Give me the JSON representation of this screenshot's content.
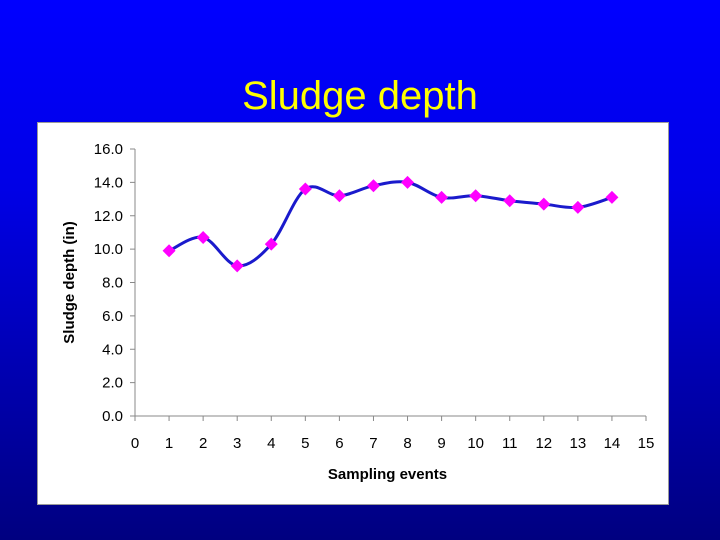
{
  "slide": {
    "title": "Sludge depth"
  },
  "colors": {
    "background": "#0000ff",
    "title": "#ffff00",
    "line": "#1a1acc",
    "marker": "#ff00ff",
    "axis": "#888888",
    "panel": "#ffffff"
  },
  "chart_data": {
    "type": "line",
    "title": "",
    "xlabel": "Sampling events",
    "ylabel": "Sludge depth (in)",
    "xlim": [
      0,
      15
    ],
    "ylim": [
      0,
      16
    ],
    "x_ticks": [
      "0",
      "1",
      "2",
      "3",
      "4",
      "5",
      "6",
      "7",
      "8",
      "9",
      "10",
      "11",
      "12",
      "13",
      "14",
      "15"
    ],
    "y_ticks": [
      "0.0",
      "2.0",
      "4.0",
      "6.0",
      "8.0",
      "10.0",
      "12.0",
      "14.0",
      "16.0"
    ],
    "grid": false,
    "legend": "none",
    "series": [
      {
        "x": [
          1,
          2,
          3,
          4,
          5,
          6,
          7,
          8,
          9,
          10,
          11,
          12,
          13,
          14
        ],
        "values": [
          9.9,
          10.7,
          9.0,
          10.3,
          13.6,
          13.2,
          13.8,
          14.0,
          13.1,
          13.2,
          12.9,
          12.7,
          12.5,
          13.1
        ],
        "line_style": "smoothed",
        "marker": "diamond"
      }
    ]
  }
}
